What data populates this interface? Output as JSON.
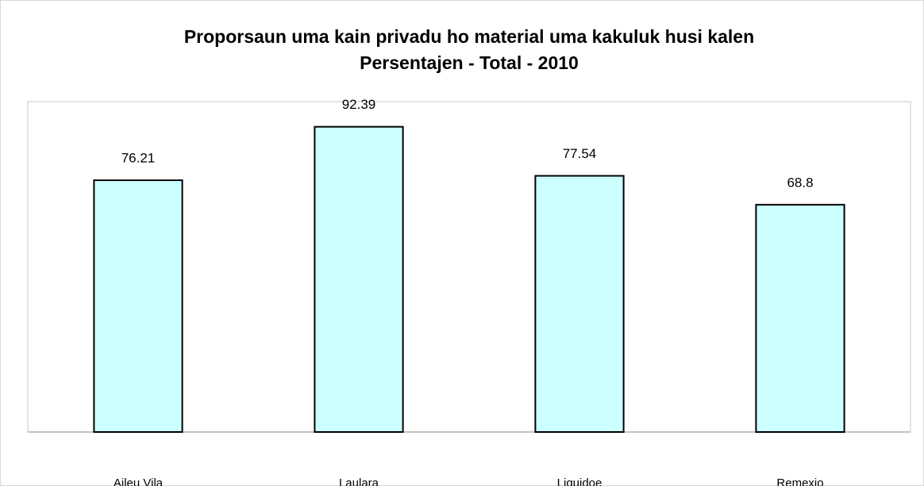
{
  "chart_data": {
    "type": "bar",
    "title": "Proporsaun uma kain privadu ho material uma kakuluk husi kalen",
    "subtitle": "Persentajen - Total - 2010",
    "categories": [
      "Aileu Vila",
      "Laulara",
      "Liquidoe",
      "Remexio"
    ],
    "values": [
      76.21,
      92.39,
      77.54,
      68.8
    ],
    "color": "#ccffff",
    "ylim": [
      0,
      100
    ]
  }
}
